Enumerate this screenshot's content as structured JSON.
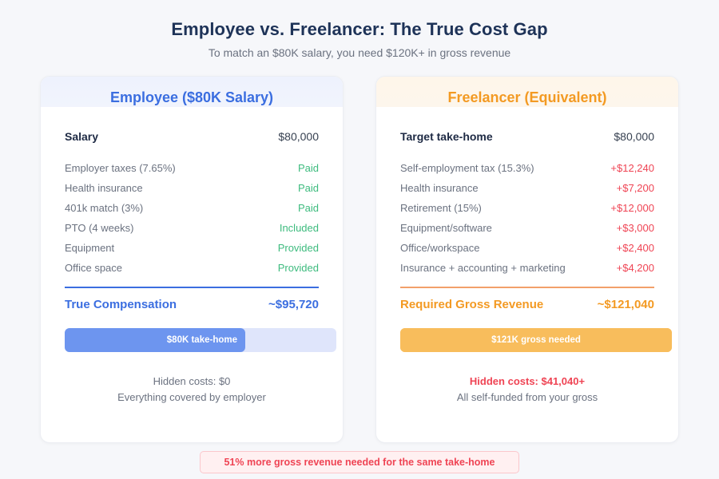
{
  "header": {
    "title": "Employee vs. Freelancer: The True Cost Gap",
    "subtitle": "To match an $80K salary, you need $120K+ in gross revenue"
  },
  "colors": {
    "employee_accent": "#3b6ee0",
    "freelancer_accent": "#f39a23",
    "positive": "#3dbb7e",
    "negative": "#ef4454"
  },
  "employee": {
    "heading": "Employee ($80K Salary)",
    "top": {
      "label": "Salary",
      "value": "$80,000"
    },
    "items": [
      {
        "label": "Employer taxes (7.65%)",
        "value": "Paid"
      },
      {
        "label": "Health insurance",
        "value": "Paid"
      },
      {
        "label": "401k match (3%)",
        "value": "Paid"
      },
      {
        "label": "PTO (4 weeks)",
        "value": "Included"
      },
      {
        "label": "Equipment",
        "value": "Provided"
      },
      {
        "label": "Office space",
        "value": "Provided"
      }
    ],
    "total": {
      "label": "True Compensation",
      "value": "~$95,720"
    },
    "bar": {
      "label": "$80K take-home",
      "fill_percent": 66
    },
    "note": {
      "line1": "Hidden costs: $0",
      "line2": "Everything covered by employer"
    }
  },
  "freelancer": {
    "heading": "Freelancer (Equivalent)",
    "top": {
      "label": "Target take-home",
      "value": "$80,000"
    },
    "items": [
      {
        "label": "Self-employment tax (15.3%)",
        "value": "+$12,240"
      },
      {
        "label": "Health insurance",
        "value": "+$7,200"
      },
      {
        "label": "Retirement (15%)",
        "value": "+$12,000"
      },
      {
        "label": "Equipment/software",
        "value": "+$3,000"
      },
      {
        "label": "Office/workspace",
        "value": "+$2,400"
      },
      {
        "label": "Insurance + accounting + marketing",
        "value": "+$4,200"
      }
    ],
    "total": {
      "label": "Required Gross Revenue",
      "value": "~$121,040"
    },
    "bar": {
      "label": "$121K gross needed",
      "fill_percent": 100
    },
    "note": {
      "line1": "Hidden costs: $41,040+",
      "line2": "All self-funded from your gross"
    }
  },
  "callout": {
    "text": "51% more gross revenue needed for the same take-home"
  }
}
